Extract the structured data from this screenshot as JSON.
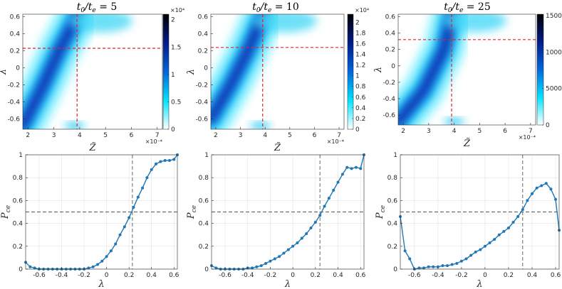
{
  "chart_data": [
    {
      "type": "heatmap",
      "title": "t0/te = 5",
      "title_parts": {
        "base": "t",
        "sub1": "0",
        "slash": "/",
        "base2": "t",
        "sub2": "e",
        "eq": "= 5"
      },
      "xlabel": "Z̃",
      "ylabel": "λ",
      "xlim": [
        1.8,
        7.2
      ],
      "ylim": [
        -0.72,
        0.63
      ],
      "xticks": [
        "2",
        "3",
        "4",
        "5",
        "6",
        "7"
      ],
      "yticks": [
        "-0.6",
        "-0.4",
        "-0.2",
        "0",
        "0.2",
        "0.4",
        "0.6"
      ],
      "x_multiplier": "×10⁻⁴",
      "colorbar": {
        "ticks": [
          "0",
          "0.5",
          "1",
          "1.5",
          "2"
        ],
        "max": 2.1,
        "multiplier": "×10⁴",
        "colormap": [
          "#ffffff",
          "#00e5ff",
          "#0066dd",
          "#001a8a",
          "#000000"
        ]
      },
      "crosshair": {
        "x": 3.9,
        "y": 0.23,
        "color": "#e8202a"
      },
      "ridge": [
        [
          1.8,
          -0.68,
          0.12
        ],
        [
          2.6,
          -0.2,
          0.2
        ],
        [
          3.2,
          0.2,
          0.22
        ],
        [
          3.9,
          0.6,
          0.3
        ]
      ],
      "bottom_blob": [
        [
          3.8,
          -0.68
        ]
      ]
    },
    {
      "type": "heatmap",
      "title": "t0/te = 10",
      "title_parts": {
        "base": "t",
        "sub1": "0",
        "slash": "/",
        "base2": "t",
        "sub2": "e",
        "eq": "= 10"
      },
      "xlabel": "Z̃",
      "ylabel": "λ",
      "xlim": [
        1.8,
        7.2
      ],
      "ylim": [
        -0.72,
        0.63
      ],
      "xticks": [
        "2",
        "3",
        "4",
        "5",
        "6",
        "7"
      ],
      "yticks": [
        "-0.6",
        "-0.4",
        "-0.2",
        "0",
        "0.2",
        "0.4",
        "0.6"
      ],
      "x_multiplier": "×10⁻⁴",
      "colorbar": {
        "ticks": [
          "0",
          "0.2",
          "0.4",
          "0.6",
          "0.8",
          "1",
          "1.2",
          "1.4",
          "1.6",
          "1.8",
          "2"
        ],
        "max": 2.15,
        "multiplier": "×10⁴",
        "colormap": [
          "#ffffff",
          "#00e5ff",
          "#0066dd",
          "#001a8a",
          "#000000"
        ]
      },
      "crosshair": {
        "x": 3.9,
        "y": 0.24,
        "color": "#e8202a"
      },
      "ridge": [
        [
          1.8,
          -0.6,
          0.14
        ],
        [
          2.6,
          -0.2,
          0.22
        ],
        [
          3.3,
          0.2,
          0.22
        ],
        [
          3.9,
          0.6,
          0.28
        ]
      ],
      "bottom_blob": [
        [
          3.8,
          -0.68
        ]
      ]
    },
    {
      "type": "heatmap",
      "title": "t0/te = 25",
      "title_parts": {
        "base": "t",
        "sub1": "0",
        "slash": "/",
        "base2": "t",
        "sub2": "e",
        "eq": "= 25"
      },
      "xlabel": "Z̃",
      "ylabel": "λ",
      "xlim": [
        1.8,
        7.2
      ],
      "ylim": [
        -0.72,
        0.63
      ],
      "xticks": [
        "2",
        "3",
        "4",
        "5",
        "6",
        "7"
      ],
      "yticks": [
        "-0.6",
        "-0.4",
        "-0.2",
        "0",
        "0.2",
        "0.4",
        "0.6"
      ],
      "x_multiplier": "×10⁻⁴",
      "colorbar": {
        "ticks": [
          "0",
          "5000",
          "10000",
          "15000"
        ],
        "max": 15200,
        "multiplier": "",
        "colormap": [
          "#ffffff",
          "#00e5ff",
          "#0066dd",
          "#001a8a",
          "#000000"
        ]
      },
      "crosshair": {
        "x": 3.9,
        "y": 0.32,
        "color": "#e8202a"
      },
      "ridge": [
        [
          1.8,
          -0.68,
          0.2
        ],
        [
          2.8,
          -0.3,
          0.3
        ],
        [
          3.6,
          0.2,
          0.35
        ],
        [
          3.9,
          0.6,
          0.35
        ]
      ],
      "bottom_blob": [
        [
          4.0,
          -0.68
        ]
      ]
    },
    {
      "type": "line",
      "xlabel": "λ",
      "ylabel": "Pce",
      "xlim": [
        -0.72,
        0.63
      ],
      "ylim": [
        0,
        1
      ],
      "xticks": [
        "-0.6",
        "-0.4",
        "-0.2",
        "0",
        "0.2",
        "0.4",
        "0.6"
      ],
      "yticks": [
        "0",
        "0.2",
        "0.4",
        "0.6",
        "0.8",
        "1"
      ],
      "grid": true,
      "color": "#1f77b4",
      "vline": 0.23,
      "hline": 0.5,
      "x": [
        -0.72,
        -0.68,
        -0.64,
        -0.6,
        -0.56,
        -0.52,
        -0.48,
        -0.44,
        -0.4,
        -0.36,
        -0.32,
        -0.28,
        -0.24,
        -0.2,
        -0.16,
        -0.12,
        -0.08,
        -0.04,
        0.0,
        0.04,
        0.08,
        0.12,
        0.16,
        0.2,
        0.24,
        0.28,
        0.32,
        0.36,
        0.4,
        0.44,
        0.48,
        0.52,
        0.56,
        0.6,
        0.63
      ],
      "y": [
        0.06,
        0.02,
        0.01,
        0.0,
        0.0,
        0.0,
        0.0,
        0.0,
        0.0,
        0.0,
        0.0,
        0.0,
        0.0,
        0.0,
        0.01,
        0.02,
        0.04,
        0.07,
        0.11,
        0.16,
        0.22,
        0.3,
        0.37,
        0.45,
        0.54,
        0.63,
        0.71,
        0.8,
        0.87,
        0.92,
        0.94,
        0.95,
        0.95,
        0.96,
        1.0
      ]
    },
    {
      "type": "line",
      "xlabel": "λ",
      "ylabel": "Pce",
      "xlim": [
        -0.72,
        0.63
      ],
      "ylim": [
        0,
        1
      ],
      "xticks": [
        "-0.6",
        "-0.4",
        "-0.2",
        "0",
        "0.2",
        "0.4",
        "0.6"
      ],
      "yticks": [
        "0",
        "0.2",
        "0.4",
        "0.6",
        "0.8",
        "1"
      ],
      "grid": true,
      "color": "#1f77b4",
      "vline": 0.24,
      "hline": 0.5,
      "x": [
        -0.72,
        -0.68,
        -0.64,
        -0.6,
        -0.56,
        -0.52,
        -0.48,
        -0.44,
        -0.4,
        -0.36,
        -0.32,
        -0.28,
        -0.24,
        -0.2,
        -0.16,
        -0.12,
        -0.08,
        -0.04,
        0.0,
        0.04,
        0.08,
        0.12,
        0.16,
        0.2,
        0.24,
        0.28,
        0.32,
        0.36,
        0.4,
        0.44,
        0.48,
        0.52,
        0.56,
        0.6,
        0.63
      ],
      "y": [
        0.03,
        0.01,
        0.0,
        0.0,
        0.0,
        0.0,
        0.0,
        0.0,
        0.01,
        0.01,
        0.02,
        0.03,
        0.05,
        0.07,
        0.09,
        0.11,
        0.14,
        0.17,
        0.2,
        0.23,
        0.27,
        0.31,
        0.36,
        0.41,
        0.47,
        0.55,
        0.62,
        0.69,
        0.76,
        0.83,
        0.89,
        0.88,
        0.89,
        0.88,
        1.0
      ]
    },
    {
      "type": "line",
      "xlabel": "λ",
      "ylabel": "Pce",
      "xlim": [
        -0.72,
        0.63
      ],
      "ylim": [
        0,
        1
      ],
      "xticks": [
        "-0.6",
        "-0.4",
        "-0.2",
        "0",
        "0.2",
        "0.4",
        "0.6"
      ],
      "yticks": [
        "0",
        "0.2",
        "0.4",
        "0.6",
        "0.8",
        "1"
      ],
      "grid": true,
      "color": "#1f77b4",
      "vline": 0.32,
      "hline": 0.5,
      "x": [
        -0.72,
        -0.68,
        -0.64,
        -0.6,
        -0.56,
        -0.52,
        -0.48,
        -0.44,
        -0.4,
        -0.36,
        -0.32,
        -0.28,
        -0.24,
        -0.2,
        -0.16,
        -0.12,
        -0.08,
        -0.04,
        0.0,
        0.04,
        0.08,
        0.12,
        0.16,
        0.2,
        0.24,
        0.28,
        0.32,
        0.36,
        0.4,
        0.44,
        0.48,
        0.52,
        0.56,
        0.6,
        0.63
      ],
      "y": [
        0.46,
        0.16,
        0.09,
        0.0,
        0.01,
        0.01,
        0.02,
        0.02,
        0.02,
        0.03,
        0.03,
        0.04,
        0.05,
        0.07,
        0.09,
        0.12,
        0.15,
        0.17,
        0.2,
        0.23,
        0.26,
        0.3,
        0.33,
        0.36,
        0.41,
        0.46,
        0.52,
        0.6,
        0.66,
        0.71,
        0.73,
        0.75,
        0.7,
        0.61,
        0.34
      ]
    }
  ]
}
